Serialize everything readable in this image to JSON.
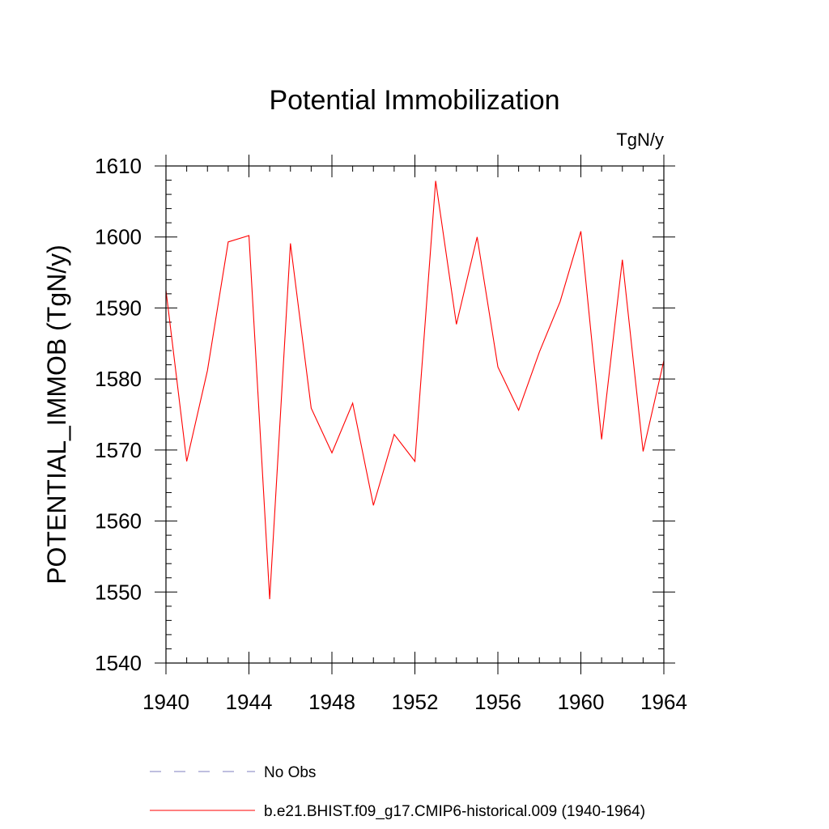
{
  "chart_data": {
    "type": "line",
    "title": "Potential Immobilization",
    "units": "TgN/y",
    "xlabel": "",
    "ylabel": "POTENTIAL_IMMOB  (TgN/y)",
    "xlim": [
      1940,
      1964
    ],
    "ylim": [
      1540,
      1610
    ],
    "x_ticks": [
      1940,
      1944,
      1948,
      1952,
      1956,
      1960,
      1964
    ],
    "y_ticks": [
      1540,
      1550,
      1560,
      1570,
      1580,
      1590,
      1600,
      1610
    ],
    "x_minor_step": 1,
    "y_minor_step": 2,
    "grid": false,
    "legend_position": "bottom",
    "x": [
      1940,
      1941,
      1942,
      1943,
      1944,
      1945,
      1946,
      1947,
      1948,
      1949,
      1950,
      1951,
      1952,
      1953,
      1954,
      1955,
      1956,
      1957,
      1958,
      1959,
      1960,
      1961,
      1962,
      1963,
      1964
    ],
    "series": [
      {
        "name": "b.e21.BHIST.f09_g17.CMIP6-historical.009 (1940-1964)",
        "color": "#ff0000",
        "line_style": "solid",
        "values": [
          1592.5,
          1568.4,
          1581.2,
          1599.3,
          1600.2,
          1549.0,
          1599.1,
          1575.9,
          1569.6,
          1576.6,
          1562.2,
          1572.2,
          1568.4,
          1607.9,
          1587.7,
          1600.0,
          1581.7,
          1575.6,
          1583.8,
          1590.9,
          1600.8,
          1571.5,
          1596.8,
          1569.8,
          1582.6
        ]
      }
    ],
    "legend": [
      {
        "label": "No Obs",
        "color": "#7f7fbf",
        "line_style": "dashed"
      },
      {
        "label": "b.e21.BHIST.f09_g17.CMIP6-historical.009 (1940-1964)",
        "color": "#ff0000",
        "line_style": "solid"
      }
    ]
  }
}
